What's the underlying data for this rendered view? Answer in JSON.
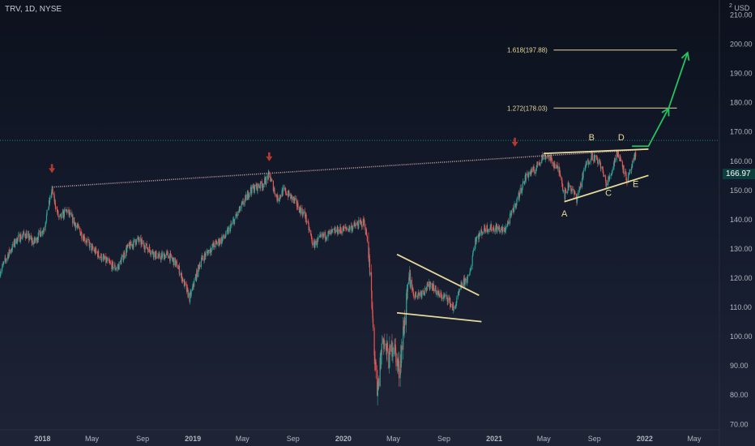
{
  "header": {
    "symbol": "TRV, 1D, NYSE",
    "currency_label": "USD",
    "currency_note": "2"
  },
  "last_price_label": "166.97",
  "colors": {
    "up": "#26a69a",
    "down": "#ef5350",
    "trendline": "#e8d99a",
    "target_arrow": "#22c55e",
    "peak_arrow": "#b23a2f",
    "support_line": "#d9c99a",
    "price_line": "#1f8a7d",
    "axis_text": "#b2b5be"
  },
  "chart_data": {
    "type": "candlestick",
    "title": "",
    "xlabel": "",
    "ylabel": "",
    "ylim": [
      68,
      215
    ],
    "x_range": [
      "2017-09-20",
      "2022-07-01"
    ],
    "y_ticks": [
      70,
      80,
      90,
      100,
      110,
      120,
      130,
      140,
      150,
      160,
      170,
      180,
      190,
      200,
      210
    ],
    "y_tick_labels": [
      "70.00",
      "80.00",
      "90.00",
      "100.00",
      "110.00",
      "120.00",
      "130.00",
      "140.00",
      "150.00",
      "160.00",
      "170.00",
      "180.00",
      "190.00",
      "200.00",
      "210.00"
    ],
    "x_ticks": [
      {
        "date": "2018-01-01",
        "label": "2018",
        "bold": true
      },
      {
        "date": "2018-05-01",
        "label": "May",
        "bold": false
      },
      {
        "date": "2018-09-01",
        "label": "Sep",
        "bold": false
      },
      {
        "date": "2019-01-01",
        "label": "2019",
        "bold": true
      },
      {
        "date": "2019-05-01",
        "label": "May",
        "bold": false
      },
      {
        "date": "2019-09-01",
        "label": "Sep",
        "bold": false
      },
      {
        "date": "2020-01-01",
        "label": "2020",
        "bold": true
      },
      {
        "date": "2020-05-01",
        "label": "May",
        "bold": false
      },
      {
        "date": "2020-09-01",
        "label": "Sep",
        "bold": false
      },
      {
        "date": "2021-01-01",
        "label": "2021",
        "bold": true
      },
      {
        "date": "2021-05-01",
        "label": "May",
        "bold": false
      },
      {
        "date": "2021-09-01",
        "label": "Sep",
        "bold": false
      },
      {
        "date": "2022-01-01",
        "label": "2022",
        "bold": true
      },
      {
        "date": "2022-05-01",
        "label": "May",
        "bold": false
      }
    ],
    "price_path": [
      [
        "2017-09-20",
        122
      ],
      [
        "2017-10-10",
        128
      ],
      [
        "2017-10-30",
        133
      ],
      [
        "2017-11-20",
        135
      ],
      [
        "2017-12-10",
        132
      ],
      [
        "2018-01-05",
        137
      ],
      [
        "2018-01-24",
        150
      ],
      [
        "2018-02-10",
        140
      ],
      [
        "2018-03-01",
        143
      ],
      [
        "2018-04-01",
        136
      ],
      [
        "2018-05-01",
        130
      ],
      [
        "2018-06-01",
        126
      ],
      [
        "2018-07-01",
        123
      ],
      [
        "2018-07-25",
        130
      ],
      [
        "2018-08-20",
        133
      ],
      [
        "2018-09-15",
        130
      ],
      [
        "2018-10-10",
        127
      ],
      [
        "2018-11-01",
        128
      ],
      [
        "2018-11-25",
        124
      ],
      [
        "2018-12-24",
        113
      ],
      [
        "2019-01-20",
        126
      ],
      [
        "2019-02-20",
        131
      ],
      [
        "2019-03-20",
        134
      ],
      [
        "2019-04-20",
        142
      ],
      [
        "2019-05-20",
        150
      ],
      [
        "2019-06-20",
        152
      ],
      [
        "2019-07-05",
        155
      ],
      [
        "2019-07-25",
        147
      ],
      [
        "2019-08-10",
        150
      ],
      [
        "2019-08-31",
        147
      ],
      [
        "2019-09-20",
        143
      ],
      [
        "2019-10-01",
        141
      ],
      [
        "2019-10-20",
        131
      ],
      [
        "2019-11-10",
        134
      ],
      [
        "2019-12-15",
        136
      ],
      [
        "2020-01-15",
        137
      ],
      [
        "2020-02-20",
        139
      ],
      [
        "2020-03-01",
        132
      ],
      [
        "2020-03-12",
        105
      ],
      [
        "2020-03-23",
        78
      ],
      [
        "2020-04-05",
        100
      ],
      [
        "2020-04-20",
        92
      ],
      [
        "2020-05-01",
        98
      ],
      [
        "2020-05-15",
        88
      ],
      [
        "2020-06-01",
        110
      ],
      [
        "2020-06-10",
        120
      ],
      [
        "2020-06-20",
        114
      ],
      [
        "2020-07-10",
        115
      ],
      [
        "2020-08-01",
        118
      ],
      [
        "2020-08-20",
        114
      ],
      [
        "2020-09-10",
        113
      ],
      [
        "2020-09-25",
        109
      ],
      [
        "2020-10-15",
        118
      ],
      [
        "2020-11-01",
        120
      ],
      [
        "2020-11-15",
        133
      ],
      [
        "2020-12-10",
        137
      ],
      [
        "2021-01-05",
        137
      ],
      [
        "2021-01-25",
        136
      ],
      [
        "2021-02-10",
        141
      ],
      [
        "2021-03-01",
        148
      ],
      [
        "2021-03-20",
        155
      ],
      [
        "2021-04-10",
        157
      ],
      [
        "2021-04-25",
        161
      ],
      [
        "2021-05-10",
        162
      ],
      [
        "2021-05-25",
        159
      ],
      [
        "2021-06-10",
        156
      ],
      [
        "2021-06-20",
        148
      ],
      [
        "2021-07-01",
        152
      ],
      [
        "2021-07-20",
        147
      ],
      [
        "2021-08-10",
        158
      ],
      [
        "2021-08-25",
        162
      ],
      [
        "2021-09-15",
        159
      ],
      [
        "2021-09-30",
        152
      ],
      [
        "2021-10-10",
        155
      ],
      [
        "2021-10-25",
        163
      ],
      [
        "2021-11-05",
        160
      ],
      [
        "2021-11-20",
        153
      ],
      [
        "2021-12-01",
        158
      ],
      [
        "2021-12-10",
        162
      ]
    ],
    "price_line_value": 166.97,
    "annotations": {
      "fib_levels": [
        {
          "label": "1.618(197.88)",
          "value": 197.88,
          "x_start": "2021-01-01",
          "x_end": "2022-03-20"
        },
        {
          "label": "1.272(178.03)",
          "value": 178.03,
          "x_start": "2021-01-01",
          "x_end": "2022-03-20"
        }
      ],
      "trendlines": [
        {
          "role": "long-resistance",
          "from": [
            "2018-01-24",
            151
          ],
          "to": [
            "2022-01-10",
            164
          ],
          "dotted": true
        },
        {
          "role": "wedge-top",
          "from": [
            "2021-05-01",
            162.5
          ],
          "to": [
            "2022-01-10",
            164
          ]
        },
        {
          "role": "wedge-bottom",
          "from": [
            "2021-06-20",
            146
          ],
          "to": [
            "2022-01-10",
            155
          ]
        },
        {
          "role": "triangle-top",
          "from": [
            "2020-05-10",
            128
          ],
          "to": [
            "2020-11-25",
            114
          ]
        },
        {
          "role": "triangle-bottom",
          "from": [
            "2020-05-10",
            108
          ],
          "to": [
            "2020-12-01",
            105
          ]
        }
      ],
      "target_path": [
        [
          "2021-12-01",
          165
        ],
        [
          "2022-01-10",
          165
        ],
        [
          "2022-02-28",
          178
        ],
        [
          "2022-04-15",
          197
        ]
      ],
      "peak_markers": [
        [
          "2018-01-24",
          155
        ],
        [
          "2019-07-05",
          159
        ],
        [
          "2021-02-20",
          164
        ]
      ],
      "wave_labels": [
        {
          "label": "A",
          "date": "2021-06-20",
          "value": 141
        },
        {
          "label": "B",
          "date": "2021-08-25",
          "value": 167
        },
        {
          "label": "C",
          "date": "2021-10-05",
          "value": 148
        },
        {
          "label": "D",
          "date": "2021-11-05",
          "value": 167
        },
        {
          "label": "E",
          "date": "2021-12-10",
          "value": 151
        }
      ]
    }
  }
}
